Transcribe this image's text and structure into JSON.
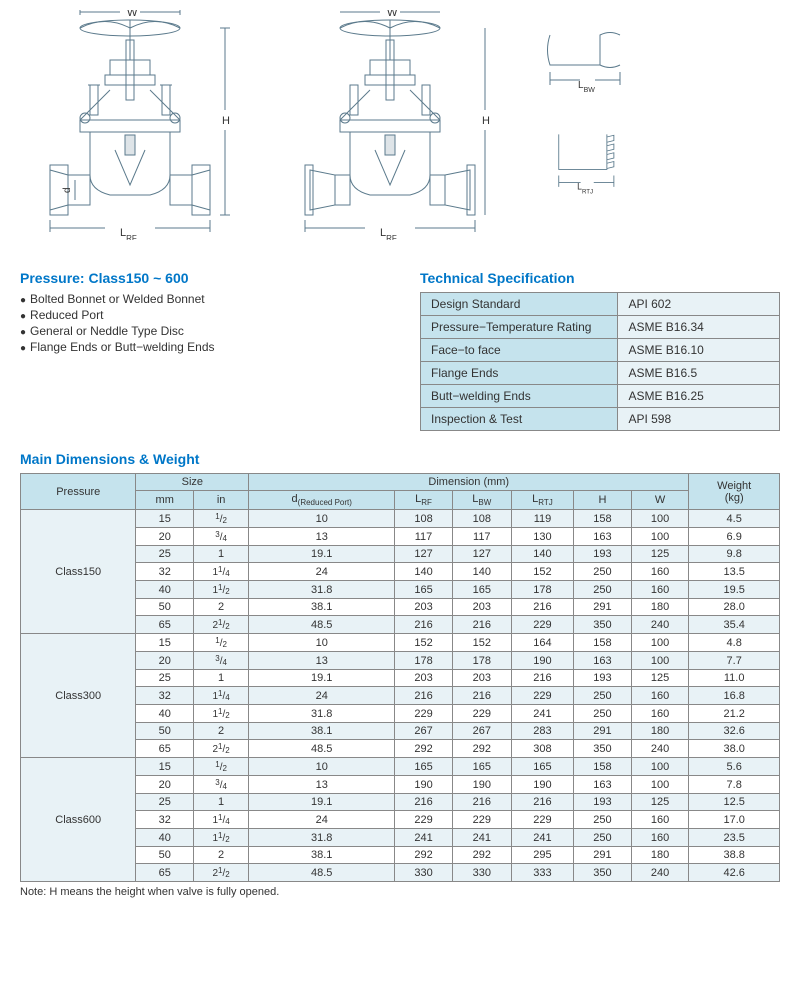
{
  "diagrams": {
    "label_W": "W",
    "label_H": "H",
    "label_LRF": "LRF",
    "label_LBW": "LBW",
    "label_LRTJ": "LRTJ",
    "label_d": "d",
    "stroke": "#5b7a8c",
    "dim_stroke": "#5b7a8c"
  },
  "pressure_section": {
    "title": "Pressure: Class150 ~ 600",
    "bullets": [
      "Bolted Bonnet or Welded Bonnet",
      "Reduced Port",
      "General or Neddle Type Disc",
      "Flange Ends or Butt−welding Ends"
    ]
  },
  "tech_spec": {
    "title": "Technical Specification",
    "rows": [
      {
        "k": "Design Standard",
        "v": "API 602"
      },
      {
        "k": "Pressure−Temperature Rating",
        "v": "ASME B16.34"
      },
      {
        "k": "Face−to face",
        "v": "ASME B16.10"
      },
      {
        "k": "Flange Ends",
        "v": "ASME B16.5"
      },
      {
        "k": "Butt−welding Ends",
        "v": "ASME B16.25"
      },
      {
        "k": "Inspection & Test",
        "v": "API 598"
      }
    ]
  },
  "dimensions": {
    "title": "Main Dimensions & Weight",
    "note": "Note: H means the height when valve is fully opened.",
    "headers": {
      "pressure": "Pressure",
      "size": "Size",
      "mm": "mm",
      "in": "in",
      "dimension": "Dimension (mm)",
      "d": "d(Reduced Port)",
      "lrf": "LRF",
      "lbw": "LBW",
      "lrtj": "LRTJ",
      "h": "H",
      "w": "W",
      "weight": "Weight (kg)"
    },
    "groups": [
      {
        "pressure": "Class150",
        "rows": [
          {
            "mm": "15",
            "in_whole": "",
            "in_num": "1",
            "in_den": "2",
            "d": "10",
            "lrf": "108",
            "lbw": "108",
            "lrtj": "119",
            "h": "158",
            "w": "100",
            "wt": "4.5"
          },
          {
            "mm": "20",
            "in_whole": "",
            "in_num": "3",
            "in_den": "4",
            "d": "13",
            "lrf": "117",
            "lbw": "117",
            "lrtj": "130",
            "h": "163",
            "w": "100",
            "wt": "6.9"
          },
          {
            "mm": "25",
            "in_whole": "1",
            "in_num": "",
            "in_den": "",
            "d": "19.1",
            "lrf": "127",
            "lbw": "127",
            "lrtj": "140",
            "h": "193",
            "w": "125",
            "wt": "9.8"
          },
          {
            "mm": "32",
            "in_whole": "1",
            "in_num": "1",
            "in_den": "4",
            "d": "24",
            "lrf": "140",
            "lbw": "140",
            "lrtj": "152",
            "h": "250",
            "w": "160",
            "wt": "13.5"
          },
          {
            "mm": "40",
            "in_whole": "1",
            "in_num": "1",
            "in_den": "2",
            "d": "31.8",
            "lrf": "165",
            "lbw": "165",
            "lrtj": "178",
            "h": "250",
            "w": "160",
            "wt": "19.5"
          },
          {
            "mm": "50",
            "in_whole": "2",
            "in_num": "",
            "in_den": "",
            "d": "38.1",
            "lrf": "203",
            "lbw": "203",
            "lrtj": "216",
            "h": "291",
            "w": "180",
            "wt": "28.0"
          },
          {
            "mm": "65",
            "in_whole": "2",
            "in_num": "1",
            "in_den": "2",
            "d": "48.5",
            "lrf": "216",
            "lbw": "216",
            "lrtj": "229",
            "h": "350",
            "w": "240",
            "wt": "35.4"
          }
        ]
      },
      {
        "pressure": "Class300",
        "rows": [
          {
            "mm": "15",
            "in_whole": "",
            "in_num": "1",
            "in_den": "2",
            "d": "10",
            "lrf": "152",
            "lbw": "152",
            "lrtj": "164",
            "h": "158",
            "w": "100",
            "wt": "4.8"
          },
          {
            "mm": "20",
            "in_whole": "",
            "in_num": "3",
            "in_den": "4",
            "d": "13",
            "lrf": "178",
            "lbw": "178",
            "lrtj": "190",
            "h": "163",
            "w": "100",
            "wt": "7.7"
          },
          {
            "mm": "25",
            "in_whole": "1",
            "in_num": "",
            "in_den": "",
            "d": "19.1",
            "lrf": "203",
            "lbw": "203",
            "lrtj": "216",
            "h": "193",
            "w": "125",
            "wt": "11.0"
          },
          {
            "mm": "32",
            "in_whole": "1",
            "in_num": "1",
            "in_den": "4",
            "d": "24",
            "lrf": "216",
            "lbw": "216",
            "lrtj": "229",
            "h": "250",
            "w": "160",
            "wt": "16.8"
          },
          {
            "mm": "40",
            "in_whole": "1",
            "in_num": "1",
            "in_den": "2",
            "d": "31.8",
            "lrf": "229",
            "lbw": "229",
            "lrtj": "241",
            "h": "250",
            "w": "160",
            "wt": "21.2"
          },
          {
            "mm": "50",
            "in_whole": "2",
            "in_num": "",
            "in_den": "",
            "d": "38.1",
            "lrf": "267",
            "lbw": "267",
            "lrtj": "283",
            "h": "291",
            "w": "180",
            "wt": "32.6"
          },
          {
            "mm": "65",
            "in_whole": "2",
            "in_num": "1",
            "in_den": "2",
            "d": "48.5",
            "lrf": "292",
            "lbw": "292",
            "lrtj": "308",
            "h": "350",
            "w": "240",
            "wt": "38.0"
          }
        ]
      },
      {
        "pressure": "Class600",
        "rows": [
          {
            "mm": "15",
            "in_whole": "",
            "in_num": "1",
            "in_den": "2",
            "d": "10",
            "lrf": "165",
            "lbw": "165",
            "lrtj": "165",
            "h": "158",
            "w": "100",
            "wt": "5.6"
          },
          {
            "mm": "20",
            "in_whole": "",
            "in_num": "3",
            "in_den": "4",
            "d": "13",
            "lrf": "190",
            "lbw": "190",
            "lrtj": "190",
            "h": "163",
            "w": "100",
            "wt": "7.8"
          },
          {
            "mm": "25",
            "in_whole": "1",
            "in_num": "",
            "in_den": "",
            "d": "19.1",
            "lrf": "216",
            "lbw": "216",
            "lrtj": "216",
            "h": "193",
            "w": "125",
            "wt": "12.5"
          },
          {
            "mm": "32",
            "in_whole": "1",
            "in_num": "1",
            "in_den": "4",
            "d": "24",
            "lrf": "229",
            "lbw": "229",
            "lrtj": "229",
            "h": "250",
            "w": "160",
            "wt": "17.0"
          },
          {
            "mm": "40",
            "in_whole": "1",
            "in_num": "1",
            "in_den": "2",
            "d": "31.8",
            "lrf": "241",
            "lbw": "241",
            "lrtj": "241",
            "h": "250",
            "w": "160",
            "wt": "23.5"
          },
          {
            "mm": "50",
            "in_whole": "2",
            "in_num": "",
            "in_den": "",
            "d": "38.1",
            "lrf": "292",
            "lbw": "292",
            "lrtj": "295",
            "h": "291",
            "w": "180",
            "wt": "38.8"
          },
          {
            "mm": "65",
            "in_whole": "2",
            "in_num": "1",
            "in_den": "2",
            "d": "48.5",
            "lrf": "330",
            "lbw": "330",
            "lrtj": "333",
            "h": "350",
            "w": "240",
            "wt": "42.6"
          }
        ]
      }
    ]
  },
  "colors": {
    "heading": "#0077c8",
    "table_header_bg": "#c5e3ed",
    "table_alt_bg": "#e8f2f6",
    "border": "#888888"
  }
}
